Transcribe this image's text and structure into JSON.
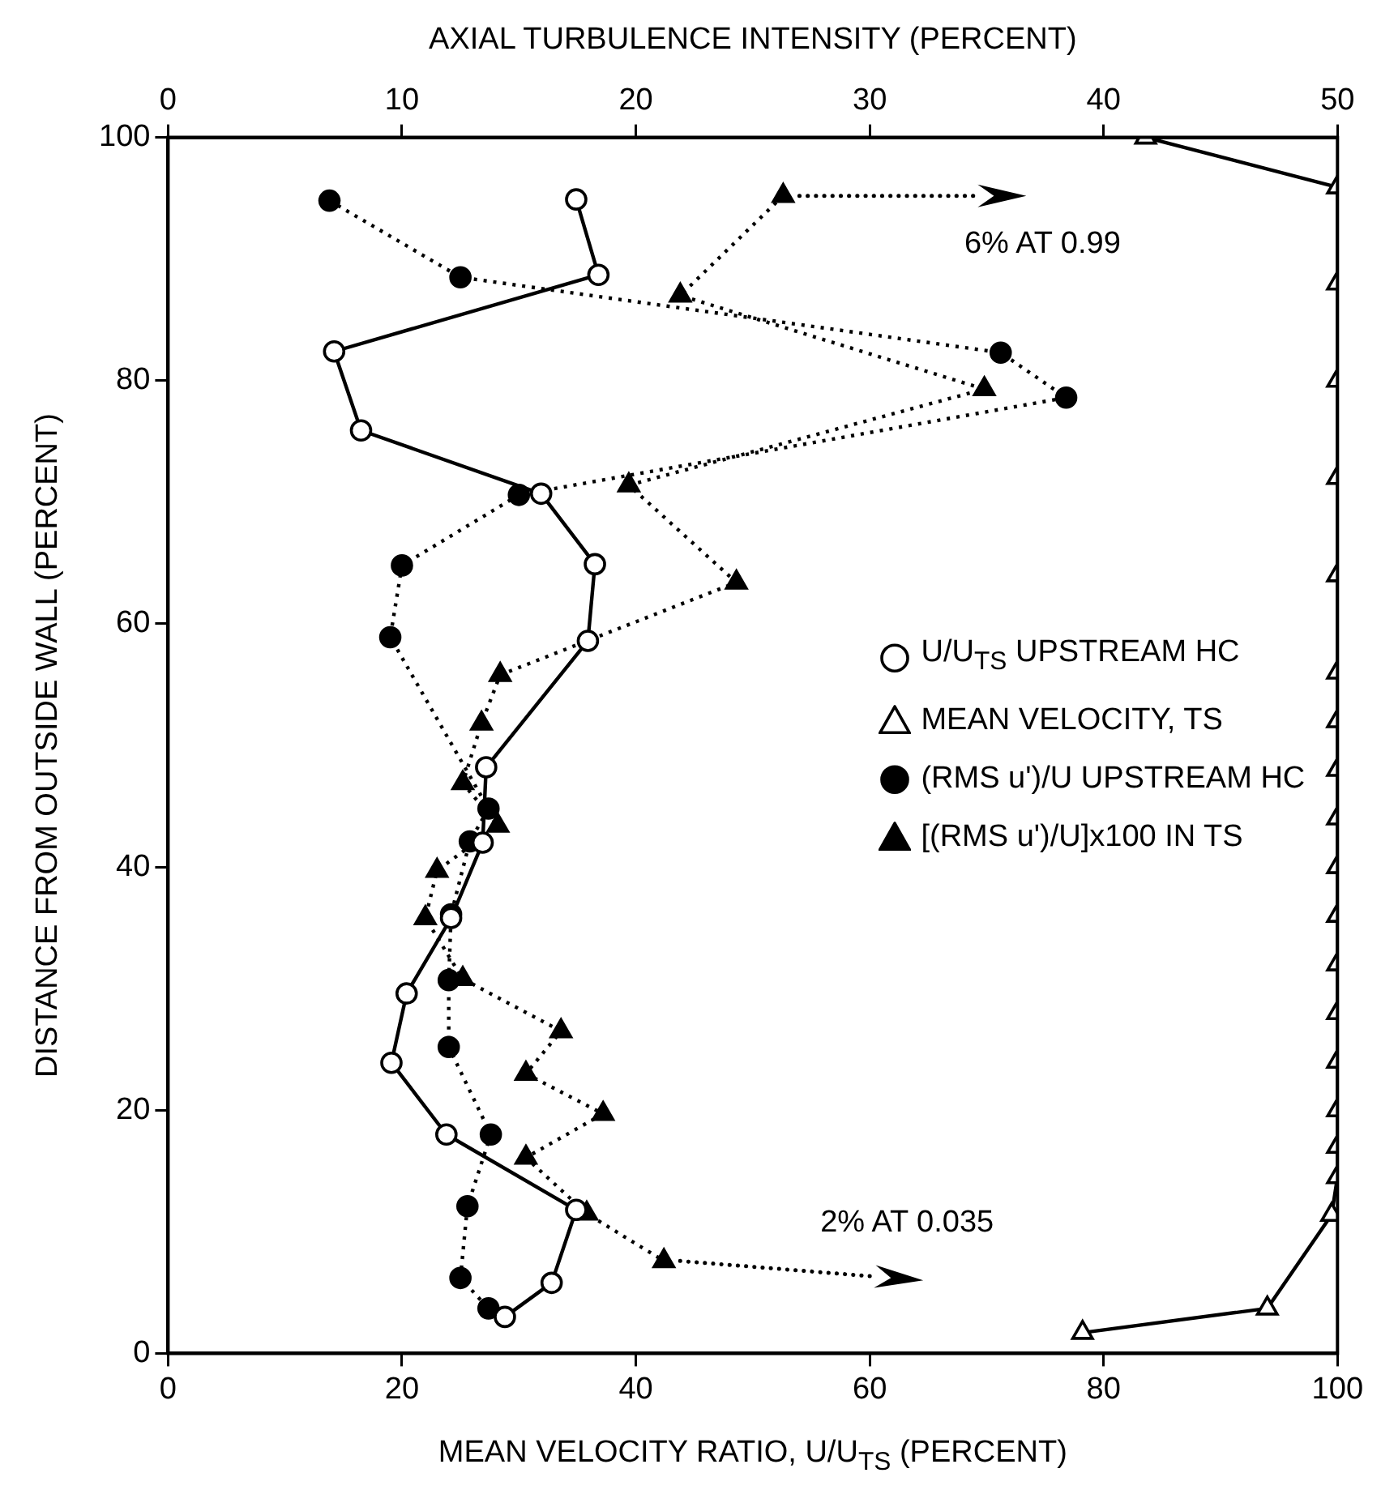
{
  "chart_data": {
    "type": "line",
    "xlabel": "MEAN VELOCITY RATIO, U/U$_{TS}$ (PERCENT)",
    "x2label": "AXIAL TURBULENCE INTENSITY  (PERCENT)",
    "ylabel": "DISTANCE FROM OUTSIDE WALL  (PERCENT)",
    "xlim": [
      0,
      100
    ],
    "xticks": [
      0,
      20,
      40,
      60,
      80,
      100
    ],
    "x2lim": [
      0,
      50
    ],
    "x2ticks": [
      0,
      10,
      20,
      30,
      40,
      50
    ],
    "ylim": [
      0,
      100
    ],
    "yticks": [
      0,
      20,
      40,
      60,
      80,
      100
    ],
    "grid": false,
    "legend": "right",
    "annotations": [
      "6% AT 0.99",
      "2% AT 0.035"
    ],
    "series": [
      {
        "name": "U/U$_{TS}$ UPSTREAM HC",
        "color": "#000000",
        "marker": "circle",
        "line_style": "solid",
        "x": [
          34.9,
          36.8,
          14.2,
          16.5,
          31.9,
          36.5,
          35.9,
          27.2,
          26.9,
          24.2,
          20.4,
          19.1,
          23.8,
          34.9,
          32.8,
          28.8
        ],
        "values": [
          94.9,
          88.7,
          82.4,
          75.9,
          70.7,
          64.9,
          58.6,
          48.2,
          42.0,
          35.8,
          29.6,
          23.9,
          18.0,
          11.8,
          5.8,
          3.0
        ]
      },
      {
        "name": "MEAN VELOCITY, TS",
        "color": "#000000",
        "marker": "triangle",
        "line_style": "solid",
        "x": [
          83.6,
          100,
          100,
          100,
          100,
          100,
          100,
          100,
          100,
          100,
          100,
          100,
          100,
          100,
          100,
          100,
          100,
          100,
          99.5,
          94.0,
          78.2
        ],
        "values": [
          100,
          95.9,
          88,
          80,
          72,
          64,
          56,
          52,
          48,
          44,
          40,
          36,
          32,
          28,
          24,
          20,
          17,
          14.5,
          11.4,
          3.7,
          1.7
        ]
      },
      {
        "name": "(RMS u')/U UPSTREAM HC",
        "color": "#000000",
        "marker": "circle",
        "line_style": "dotted",
        "axis": "x2",
        "x": [
          6.9,
          12.5,
          35.6,
          38.4,
          15.0,
          10.0,
          9.5,
          13.7,
          12.9,
          12.1,
          12.0,
          12.0,
          13.8,
          12.8,
          12.5,
          13.7
        ],
        "values": [
          94.8,
          88.5,
          82.3,
          78.6,
          70.6,
          64.8,
          58.9,
          44.8,
          42.1,
          36.1,
          30.7,
          25.2,
          18.0,
          12.1,
          6.2,
          3.7
        ]
      },
      {
        "name": "[(RMS u')/U]x100 IN TS",
        "color": "#000000",
        "marker": "triangle",
        "line_style": "dotted",
        "axis": "x2",
        "x": [
          26.3,
          21.9,
          34.9,
          19.7,
          24.3,
          14.2,
          13.4,
          12.6,
          14.1,
          11.5,
          11.0,
          12.6,
          16.8,
          15.3,
          18.6,
          15.3,
          17.9,
          21.2
        ],
        "values": [
          95.2,
          87.0,
          79.3,
          71.4,
          63.4,
          55.8,
          51.8,
          46.9,
          43.4,
          39.7,
          35.8,
          30.8,
          26.5,
          23.0,
          19.7,
          16.1,
          11.5,
          7.6
        ]
      }
    ]
  }
}
